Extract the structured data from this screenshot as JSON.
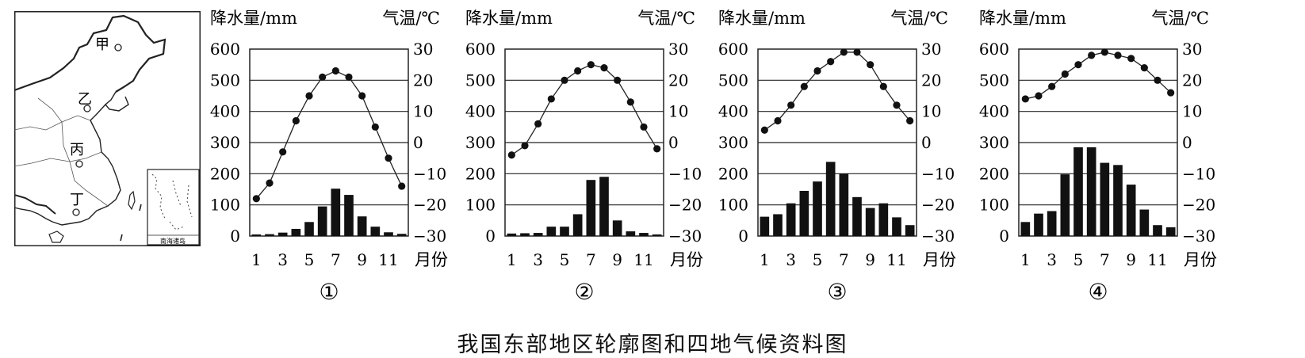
{
  "map": {
    "places": [
      "甲",
      "乙",
      "丙",
      "丁"
    ],
    "inset_label": "南海诸岛"
  },
  "caption": "我国东部地区轮廓图和四地气候资料图",
  "chart_data": [
    {
      "type": "bar",
      "id": "①",
      "ylabel": "降水量/mm",
      "y2label": "气温/℃",
      "xlabel": "月份",
      "ylim": [
        0,
        600
      ],
      "y2lim": [
        -30,
        30
      ],
      "y_ticks": [
        "0",
        "100",
        "200",
        "300",
        "400",
        "500",
        "600"
      ],
      "y2_ticks": [
        "−30",
        "−20",
        "−10",
        "0",
        "10",
        "20",
        "30"
      ],
      "x_ticks": [
        "1",
        "3",
        "5",
        "7",
        "9",
        "11"
      ],
      "categories": [
        1,
        2,
        3,
        4,
        5,
        6,
        7,
        8,
        9,
        10,
        11,
        12
      ],
      "series": [
        {
          "kind": "bar",
          "axis": "left",
          "values": [
            5,
            6,
            11,
            23,
            45,
            95,
            152,
            132,
            63,
            30,
            12,
            7
          ]
        },
        {
          "kind": "line",
          "axis": "right",
          "values": [
            -18,
            -13,
            -3,
            7,
            15,
            21,
            23,
            21,
            15,
            5,
            -5,
            -14
          ]
        }
      ]
    },
    {
      "type": "bar",
      "id": "②",
      "ylabel": "降水量/mm",
      "y2label": "气温/℃",
      "xlabel": "月份",
      "ylim": [
        0,
        600
      ],
      "y2lim": [
        -30,
        30
      ],
      "y_ticks": [
        "0",
        "100",
        "200",
        "300",
        "400",
        "500",
        "600"
      ],
      "y2_ticks": [
        "−30",
        "−20",
        "−10",
        "0",
        "10",
        "20",
        "30"
      ],
      "x_ticks": [
        "1",
        "3",
        "5",
        "7",
        "9",
        "11"
      ],
      "categories": [
        1,
        2,
        3,
        4,
        5,
        6,
        7,
        8,
        9,
        10,
        11,
        12
      ],
      "series": [
        {
          "kind": "bar",
          "axis": "left",
          "values": [
            8,
            9,
            10,
            30,
            30,
            70,
            180,
            190,
            50,
            15,
            10,
            5
          ]
        },
        {
          "kind": "line",
          "axis": "right",
          "values": [
            -4,
            -1,
            6,
            14,
            20,
            23,
            25,
            24,
            20,
            13,
            5,
            -2
          ]
        }
      ]
    },
    {
      "type": "bar",
      "id": "③",
      "ylabel": "降水量/mm",
      "y2label": "气温/℃",
      "xlabel": "月份",
      "ylim": [
        0,
        600
      ],
      "y2lim": [
        -30,
        30
      ],
      "y_ticks": [
        "0",
        "100",
        "200",
        "300",
        "400",
        "500",
        "600"
      ],
      "y2_ticks": [
        "−30",
        "−20",
        "−10",
        "0",
        "10",
        "20",
        "30"
      ],
      "x_ticks": [
        "1",
        "3",
        "5",
        "7",
        "9",
        "11"
      ],
      "categories": [
        1,
        2,
        3,
        4,
        5,
        6,
        7,
        8,
        9,
        10,
        11,
        12
      ],
      "series": [
        {
          "kind": "bar",
          "axis": "left",
          "values": [
            62,
            70,
            105,
            145,
            175,
            238,
            200,
            125,
            90,
            105,
            60,
            35
          ]
        },
        {
          "kind": "line",
          "axis": "right",
          "values": [
            4,
            7,
            12,
            18,
            23,
            26,
            29,
            29,
            25,
            18,
            12,
            7
          ]
        }
      ]
    },
    {
      "type": "bar",
      "id": "④",
      "ylabel": "降水量/mm",
      "y2label": "气温/℃",
      "xlabel": "月份",
      "ylim": [
        0,
        600
      ],
      "y2lim": [
        -30,
        30
      ],
      "y_ticks": [
        "0",
        "100",
        "200",
        "300",
        "400",
        "500",
        "600"
      ],
      "y2_ticks": [
        "−30",
        "−20",
        "−10",
        "0",
        "10",
        "20",
        "30"
      ],
      "x_ticks": [
        "1",
        "3",
        "5",
        "7",
        "9",
        "11"
      ],
      "categories": [
        1,
        2,
        3,
        4,
        5,
        6,
        7,
        8,
        9,
        10,
        11,
        12
      ],
      "series": [
        {
          "kind": "bar",
          "axis": "left",
          "values": [
            45,
            72,
            80,
            198,
            285,
            285,
            235,
            228,
            165,
            85,
            35,
            28
          ]
        },
        {
          "kind": "line",
          "axis": "right",
          "values": [
            14,
            15,
            18,
            22,
            25,
            28,
            29,
            28,
            27,
            24,
            20,
            16
          ]
        }
      ]
    }
  ]
}
